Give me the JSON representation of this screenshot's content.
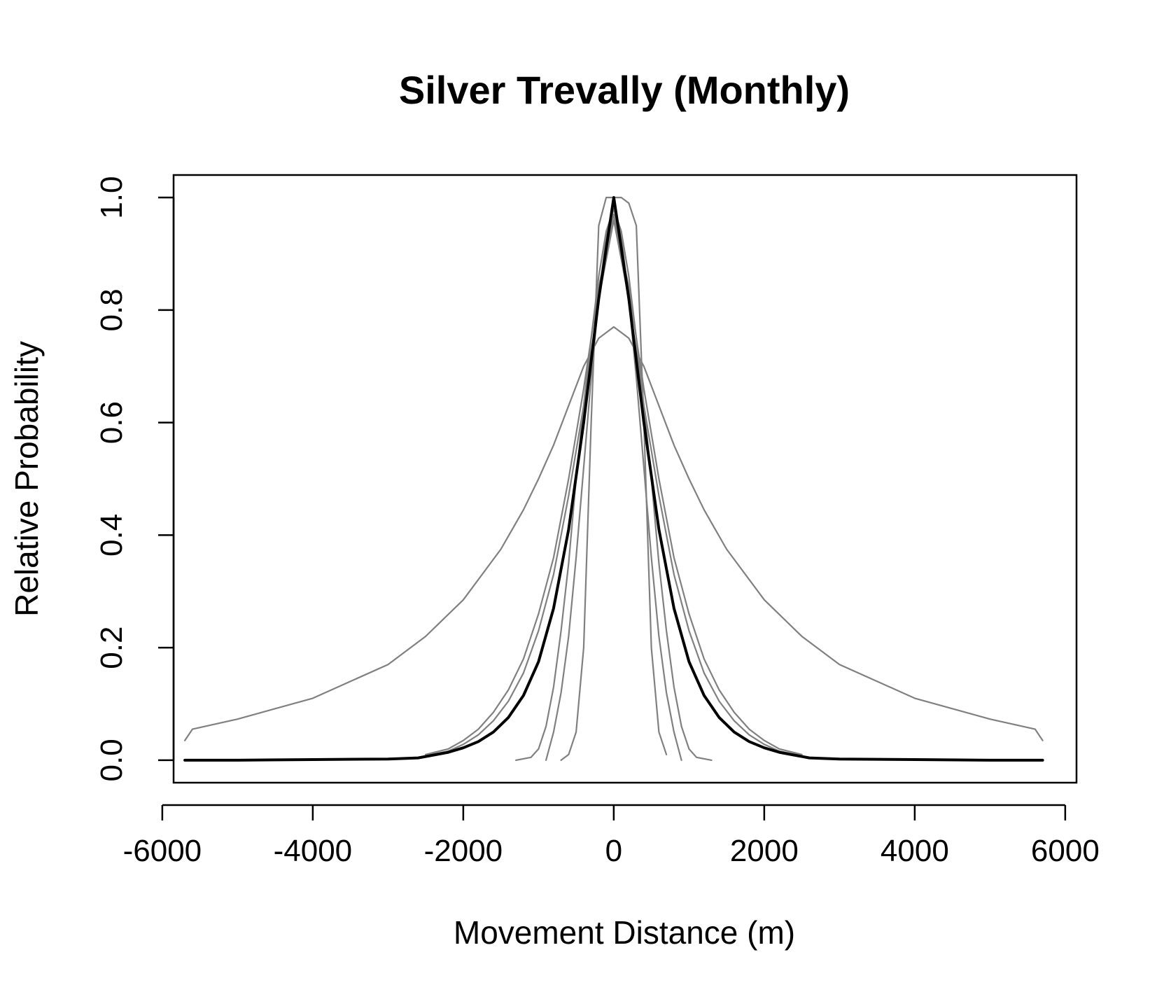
{
  "chart_data": {
    "type": "line",
    "title": "Silver Trevally (Monthly)",
    "xlabel": "Movement Distance (m)",
    "ylabel": "Relative Probability",
    "xlim": [
      -5850,
      6150
    ],
    "ylim": [
      -0.04,
      1.04
    ],
    "xticks": [
      -6000,
      -4000,
      -2000,
      0,
      2000,
      4000,
      6000
    ],
    "yticks": [
      0.0,
      0.2,
      0.4,
      0.6,
      0.8,
      1.0
    ],
    "xtick_labels": [
      "-6000",
      "-4000",
      "-2000",
      "0",
      "2000",
      "4000",
      "6000"
    ],
    "ytick_labels": [
      "0.0",
      "0.2",
      "0.4",
      "0.6",
      "0.8",
      "1.0"
    ],
    "grid": false,
    "colors": {
      "individual": "#808080",
      "mean": "#000000"
    },
    "series": [
      {
        "style": "individual",
        "x": [
          -5700,
          -5600,
          -5000,
          -4000,
          -3000,
          -2500,
          -2000,
          -1500,
          -1200,
          -1000,
          -800,
          -600,
          -400,
          -200,
          0,
          200,
          400,
          600,
          800,
          1000,
          1200,
          1500,
          2000,
          2500,
          3000,
          4000,
          5000,
          5600,
          5700
        ],
        "y": [
          0.035,
          0.055,
          0.073,
          0.11,
          0.17,
          0.22,
          0.285,
          0.375,
          0.445,
          0.5,
          0.56,
          0.63,
          0.7,
          0.75,
          0.77,
          0.75,
          0.7,
          0.63,
          0.56,
          0.5,
          0.445,
          0.375,
          0.285,
          0.22,
          0.17,
          0.11,
          0.073,
          0.055,
          0.035
        ]
      },
      {
        "style": "individual",
        "x": [
          -700,
          -600,
          -500,
          -400,
          -300,
          -200,
          -100,
          0,
          100,
          200,
          300,
          400,
          500,
          600,
          700
        ],
        "y": [
          0.0,
          0.01,
          0.05,
          0.2,
          0.6,
          0.95,
          1.0,
          1.0,
          1.0,
          0.99,
          0.95,
          0.6,
          0.2,
          0.05,
          0.01
        ]
      },
      {
        "style": "individual",
        "x": [
          -1300,
          -1100,
          -1000,
          -900,
          -800,
          -700,
          -600,
          -500,
          -400,
          -300,
          -200,
          -100,
          0,
          100,
          200,
          300,
          400,
          500,
          600,
          700,
          800,
          900,
          1000,
          1100,
          1300
        ],
        "y": [
          0.0,
          0.005,
          0.02,
          0.06,
          0.13,
          0.23,
          0.35,
          0.5,
          0.63,
          0.75,
          0.86,
          0.94,
          0.98,
          0.94,
          0.86,
          0.75,
          0.63,
          0.5,
          0.35,
          0.23,
          0.13,
          0.06,
          0.02,
          0.005,
          0.0
        ]
      },
      {
        "style": "individual",
        "x": [
          -900,
          -800,
          -700,
          -600,
          -500,
          -400,
          -300,
          -200,
          -100,
          0,
          100,
          200,
          300,
          400,
          500,
          600,
          700,
          800,
          900
        ],
        "y": [
          0.0,
          0.05,
          0.12,
          0.22,
          0.36,
          0.52,
          0.68,
          0.82,
          0.93,
          0.98,
          0.93,
          0.82,
          0.68,
          0.52,
          0.36,
          0.22,
          0.12,
          0.05,
          0.0
        ]
      },
      {
        "style": "individual",
        "x": [
          -2500,
          -2200,
          -2000,
          -1800,
          -1600,
          -1400,
          -1200,
          -1000,
          -800,
          -600,
          -400,
          -200,
          0,
          200,
          400,
          600,
          800,
          1000,
          1200,
          1400,
          1600,
          1800,
          2000,
          2200,
          2500
        ],
        "y": [
          0.01,
          0.02,
          0.035,
          0.055,
          0.085,
          0.125,
          0.18,
          0.26,
          0.36,
          0.5,
          0.66,
          0.84,
          0.97,
          0.84,
          0.66,
          0.5,
          0.36,
          0.26,
          0.18,
          0.125,
          0.085,
          0.055,
          0.035,
          0.02,
          0.01
        ]
      },
      {
        "style": "individual",
        "x": [
          -2500,
          -2200,
          -2000,
          -1800,
          -1600,
          -1400,
          -1200,
          -1000,
          -800,
          -600,
          -400,
          -200,
          0,
          200,
          400,
          600,
          800,
          1000,
          1200,
          1400,
          1600,
          1800,
          2000,
          2200,
          2500
        ],
        "y": [
          0.008,
          0.016,
          0.028,
          0.045,
          0.07,
          0.105,
          0.155,
          0.23,
          0.33,
          0.47,
          0.63,
          0.82,
          0.96,
          0.82,
          0.63,
          0.47,
          0.33,
          0.23,
          0.155,
          0.105,
          0.07,
          0.045,
          0.028,
          0.016,
          0.008
        ]
      },
      {
        "style": "mean",
        "x": [
          -5700,
          -5000,
          -4000,
          -3000,
          -2600,
          -2200,
          -2000,
          -1800,
          -1600,
          -1400,
          -1200,
          -1000,
          -800,
          -600,
          -400,
          -200,
          0,
          200,
          400,
          600,
          800,
          1000,
          1200,
          1400,
          1600,
          1800,
          2000,
          2200,
          2600,
          3000,
          4000,
          5000,
          5700
        ],
        "y": [
          0.0,
          0.0,
          0.001,
          0.002,
          0.004,
          0.014,
          0.022,
          0.033,
          0.05,
          0.076,
          0.115,
          0.175,
          0.27,
          0.41,
          0.6,
          0.82,
          1.0,
          0.82,
          0.6,
          0.41,
          0.27,
          0.175,
          0.115,
          0.076,
          0.05,
          0.033,
          0.022,
          0.014,
          0.004,
          0.002,
          0.001,
          0.0,
          0.0
        ]
      }
    ]
  }
}
